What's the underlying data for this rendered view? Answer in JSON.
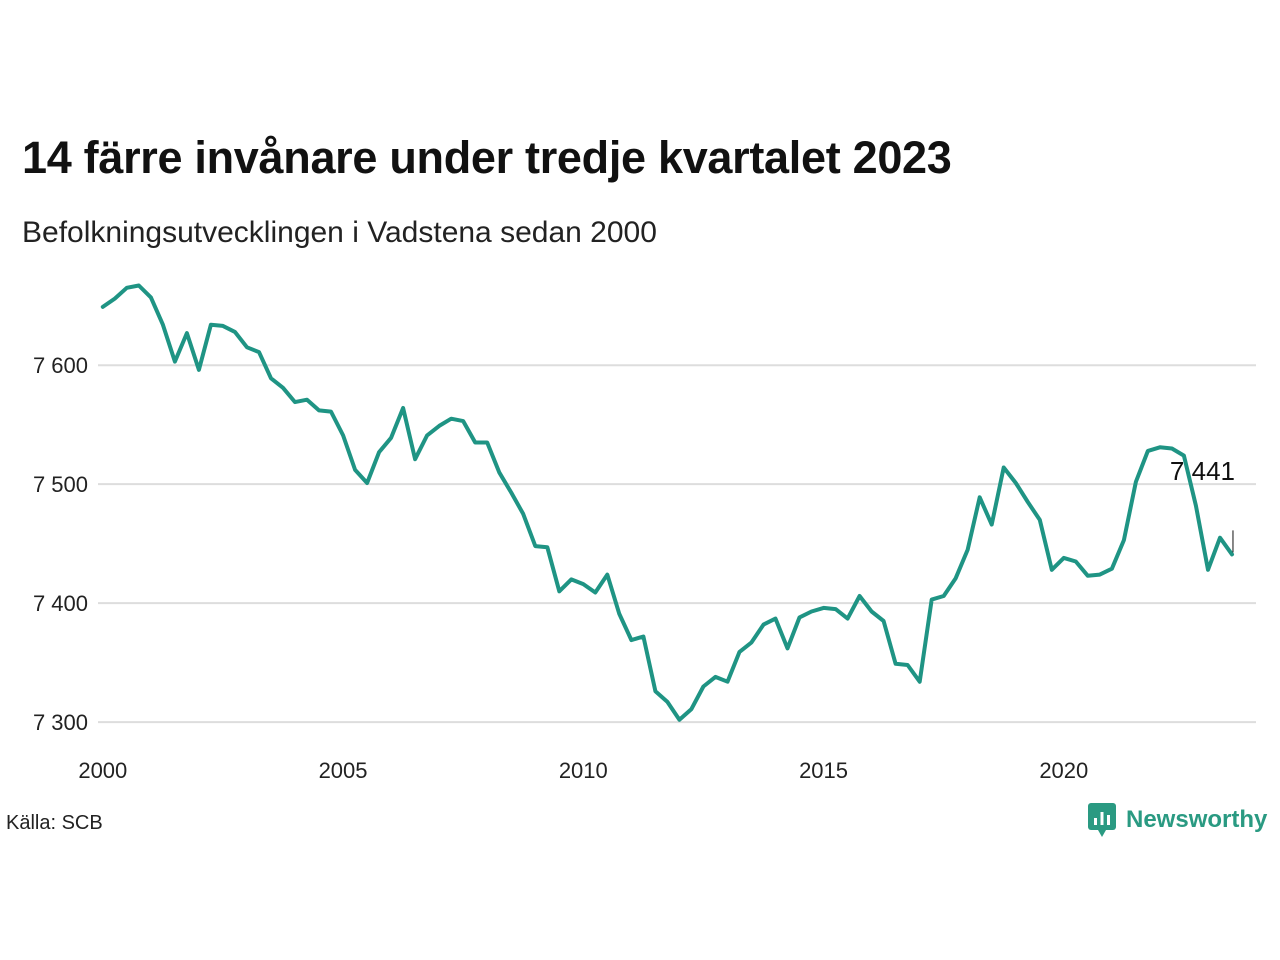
{
  "header": {
    "title": "14 färre invånare under tredje kvartalet 2023",
    "subtitle": "Befolkningsutvecklingen i Vadstena sedan 2000"
  },
  "footer": {
    "source": "Källa: SCB",
    "brand": "Newsworthy"
  },
  "colors": {
    "line": "#1f9484",
    "grid": "#dddddd",
    "brand": "#2a9a82"
  },
  "chart_data": {
    "type": "line",
    "title": "14 färre invånare under tredje kvartalet 2023",
    "subtitle": "Befolkningsutvecklingen i Vadstena sedan 2000",
    "xlabel": "",
    "ylabel": "",
    "x_ticks": [
      "2000",
      "2005",
      "2010",
      "2015",
      "2020"
    ],
    "y_ticks": [
      "7 300",
      "7 400",
      "7 500",
      "7 600"
    ],
    "y_tick_values": [
      7300,
      7400,
      7500,
      7600
    ],
    "x_tick_values": [
      2000,
      2005,
      2010,
      2015,
      2020
    ],
    "xlim": [
      1999.9,
      2024.0
    ],
    "ylim": [
      7285,
      7680
    ],
    "grid": true,
    "end_label": "7 441",
    "series": [
      {
        "x": [
          2000.0,
          2000.25,
          2000.5,
          2000.75,
          2001.0,
          2001.25,
          2001.5,
          2001.75,
          2002.0,
          2002.25,
          2002.5,
          2002.75,
          2003.0,
          2003.25,
          2003.5,
          2003.75,
          2004.0,
          2004.25,
          2004.5,
          2004.75,
          2005.0,
          2005.25,
          2005.5,
          2005.75,
          2006.0,
          2006.25,
          2006.5,
          2006.75,
          2007.0,
          2007.25,
          2007.5,
          2007.75,
          2008.0,
          2008.25,
          2008.5,
          2008.75,
          2009.0,
          2009.25,
          2009.5,
          2009.75,
          2010.0,
          2010.25,
          2010.5,
          2010.75,
          2011.0,
          2011.25,
          2011.5,
          2011.75,
          2012.0,
          2012.25,
          2012.5,
          2012.75,
          2013.0,
          2013.25,
          2013.5,
          2013.75,
          2014.0,
          2014.25,
          2014.5,
          2014.75,
          2015.0,
          2015.25,
          2015.5,
          2015.75,
          2016.0,
          2016.25,
          2016.5,
          2016.75,
          2017.0,
          2017.25,
          2017.5,
          2017.75,
          2018.0,
          2018.25,
          2018.5,
          2018.75,
          2019.0,
          2019.25,
          2019.5,
          2019.75,
          2020.0,
          2020.25,
          2020.5,
          2020.75,
          2021.0,
          2021.25,
          2021.5,
          2021.75,
          2022.0,
          2022.25,
          2022.5,
          2022.75,
          2023.0,
          2023.25,
          2023.5
        ],
        "values": [
          7649,
          7656,
          7665,
          7667,
          7657,
          7634,
          7603,
          7627,
          7596,
          7634,
          7633,
          7628,
          7615,
          7611,
          7589,
          7581,
          7569,
          7571,
          7562,
          7561,
          7541,
          7512,
          7501,
          7527,
          7539,
          7564,
          7521,
          7541,
          7549,
          7555,
          7553,
          7535,
          7535,
          7510,
          7493,
          7475,
          7448,
          7447,
          7410,
          7420,
          7416,
          7409,
          7424,
          7391,
          7369,
          7372,
          7326,
          7317,
          7302,
          7311,
          7330,
          7338,
          7334,
          7359,
          7367,
          7382,
          7387,
          7362,
          7388,
          7393,
          7396,
          7395,
          7387,
          7406,
          7393,
          7385,
          7349,
          7348,
          7334,
          7403,
          7406,
          7421,
          7445,
          7489,
          7466,
          7514,
          7501,
          7485,
          7470,
          7428,
          7438,
          7435,
          7423,
          7424,
          7429,
          7453,
          7502,
          7528,
          7531,
          7530,
          7524,
          7482,
          7428,
          7455,
          7441
        ]
      }
    ]
  }
}
